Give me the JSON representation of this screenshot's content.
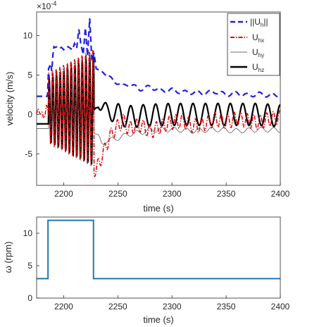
{
  "chart_data": [
    {
      "type": "line",
      "xlabel": "time (s)",
      "ylabel": "velocity (m/s)",
      "y_multiplier_label": "×10",
      "y_multiplier_exp": "-4",
      "xlim": [
        2175,
        2400
      ],
      "ylim": [
        -9,
        13
      ],
      "xticks": [
        2200,
        2250,
        2300,
        2350,
        2400
      ],
      "yticks": [
        -5,
        0,
        5,
        10
      ],
      "legend_position": "top-right",
      "legend": [
        {
          "main": "||U",
          "sub": "h",
          "tail": "||",
          "color": "#1f1fe6",
          "style": "dashed"
        },
        {
          "main": "U",
          "sub": "hx",
          "tail": "",
          "color": "#e00000",
          "style": "dashdot"
        },
        {
          "main": "U",
          "sub": "hy",
          "tail": "",
          "color": "#404040",
          "style": "thin"
        },
        {
          "main": "U",
          "sub": "hz",
          "tail": "",
          "color": "#000000",
          "style": "thick"
        }
      ],
      "series": [
        {
          "name": "||Uh||",
          "x": [
            2175,
            2183,
            2185,
            2186,
            2188,
            2189,
            2190,
            2191,
            2192,
            2194,
            2196,
            2198,
            2200,
            2204,
            2208,
            2210,
            2212,
            2214,
            2216,
            2218,
            2220,
            2222,
            2224,
            2226,
            2228,
            2230,
            2235,
            2240,
            2245,
            2250,
            2255,
            2260,
            2270,
            2280,
            2290,
            2300,
            2310,
            2320,
            2330,
            2340,
            2350,
            2360,
            2370,
            2380,
            2390,
            2400
          ],
          "y": [
            2.3,
            2.3,
            2.3,
            5.8,
            6.4,
            5.5,
            7.5,
            8.6,
            8.5,
            8.6,
            8.4,
            8.5,
            8.2,
            8.6,
            8.2,
            9.0,
            8.4,
            10.8,
            8.8,
            7.6,
            11.0,
            7.4,
            12.2,
            6.8,
            7.8,
            5.8,
            5.5,
            4.8,
            4.4,
            4.0,
            3.6,
            3.9,
            3.2,
            3.5,
            3.0,
            3.1,
            2.8,
            2.8,
            2.7,
            2.9,
            2.5,
            2.7,
            2.4,
            2.6,
            2.4,
            2.5
          ]
        },
        {
          "name": "Uhx",
          "x": [
            2175,
            2178,
            2181,
            2184,
            2187,
            2230,
            2233,
            2237,
            2241,
            2245,
            2250,
            2255,
            2260,
            2270,
            2280,
            2290,
            2300,
            2310,
            2320,
            2330,
            2340,
            2350,
            2360,
            2370,
            2380,
            2390,
            2400
          ],
          "y": [
            0.0,
            0.6,
            -0.5,
            0.8,
            -0.2,
            -7.2,
            -6.0,
            -4.8,
            -3.3,
            -2.3,
            -1.5,
            -0.8,
            -1.8,
            -1.3,
            -2.2,
            -1.5,
            -1.0,
            -0.8,
            -1.5,
            -1.2,
            -0.6,
            -1.0,
            -0.5,
            -0.8,
            -1.0,
            -0.6,
            -0.4
          ],
          "osc_period": 4.2,
          "osc_amplitude": 0.9
        },
        {
          "name": "Uhy",
          "x": [
            2175,
            2186,
            2228,
            2230,
            2235,
            2240,
            2245,
            2250,
            2260,
            2270,
            2280,
            2300,
            2320,
            2340,
            2360,
            2380,
            2400
          ],
          "y": [
            -1.8,
            -1.8,
            -1.8,
            -2.5,
            -3.8,
            -3.3,
            -3.2,
            -3.0,
            -2.5,
            -2.3,
            -2.0,
            -1.9,
            -2.1,
            -1.9,
            -2.1,
            -1.9,
            -2.0
          ],
          "osc_period": 11.5,
          "osc_amplitude": 0.3
        },
        {
          "name": "Uhz",
          "x": [
            2175,
            2186,
            2228,
            2232,
            2240,
            2260,
            2280,
            2300,
            2320,
            2340,
            2360,
            2380,
            2400
          ],
          "y": [
            -1.2,
            -1.2,
            0.0,
            1.5,
            0.4,
            -0.3,
            -0.1,
            0.0,
            0.0,
            0.0,
            0.0,
            0.0,
            -0.2
          ],
          "osc_period": 11.5,
          "osc_amplitude": 1.4
        }
      ]
    },
    {
      "type": "line",
      "xlabel": "time (s)",
      "ylabel": "ω (rpm)",
      "xlim": [
        2175,
        2400
      ],
      "ylim": [
        0,
        12.5
      ],
      "xticks": [
        2200,
        2250,
        2300,
        2350,
        2400
      ],
      "yticks": [
        0,
        5,
        10
      ],
      "series": [
        {
          "name": "",
          "color": "#1f77b4",
          "x": [
            2175,
            2185.5,
            2185.5,
            2227.5,
            2227.5,
            2400
          ],
          "y": [
            3,
            3,
            12,
            12,
            3,
            3
          ]
        }
      ]
    }
  ]
}
